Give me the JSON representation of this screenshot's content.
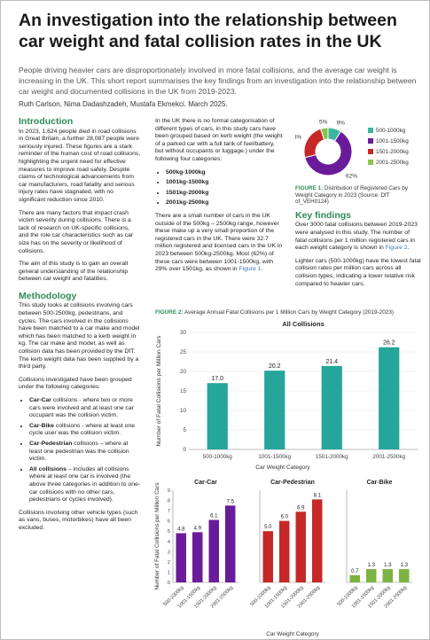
{
  "title": "An investigation into the relationship between car weight and fatal collision rates in the UK",
  "intro": "People driving heavier cars are disproportionately involved in more fatal collisions, and the average car weight is increasing in the UK. This short report summarises the key findings from an investigation into the relationship between car weight and documented collisions in the UK from 2019-2023.",
  "authors": "Ruth Carlson, Nima Dadashzadeh, Mustafa Ekmekci. March 2025.",
  "introduction": {
    "heading": "Introduction",
    "p1": "In 2023, 1,624 people died in road collisions in Great Britain, a further 28,087 people were seriously injured. These figures are a stark reminder of the human cost of road collisions, highlighting the urgent need for effective measures to improve road safety. Despite claims of technological advancements from car manufacturers, road fatality and serious injury rates have stagnated, with no significant reduction since 2010.",
    "p2": "There are many factors that impact crash victim severity during collisions. There is a lack of research on UK-specific collisions, and the role car characteristics such as car size has on the severity or likelihood of collisions.",
    "p3": "The aim of this study is to gain an overall general understanding of the relationship between car weight and fatalities."
  },
  "methodology": {
    "heading": "Methodology",
    "p1": "This study looks at collisions involving cars between 500-2500kg, pedestrians, and cycles. The cars involved in the collisions have been matched to a car make and model which has been matched to a kerb weight in kg. The car make and model, as well as collision data has been provided by the DfT. The kerb weight data has been supplied by a third party.",
    "p2": "Collisions investigated have been grouped under the following categories:",
    "items": [
      {
        "term": "Car-Car",
        "text": " collisions - where two or more cars were involved and at least one car occupant was the collision victim."
      },
      {
        "term": "Car-Bike",
        "text": " collisions - where at least one cycle user was the collision victim."
      },
      {
        "term": "Car-Pedestrian",
        "text": " collisions – where at least one pedestrian was the collision victim."
      },
      {
        "term": "All collisions",
        "text": " – includes all collisions where at least one car is involved (the above three categories in addition to one-car collisions with no other cars, pedestrians or cycles involved)."
      }
    ],
    "p3": "Collisions involving other vehicle types (such as vans, buses, motorbikes) have all been excluded."
  },
  "categories_text": {
    "p1": "In the UK there is no formal categorisation of different types of cars, in this study cars have been grouped based on kerb weight (the weight of a parked car with a full tank of fuel/battery, but without occupants or luggage.) under the following four categories:",
    "items": [
      "500kg-1000kg",
      "1001kg-1500kg",
      "1501kg-2000kg",
      "2001kg-2500kg"
    ],
    "p2_before": "There are a small number of cars in the UK outside of the 500kg – 2500kg range, however these make up a very small proportion of the registered cars in the UK. There were 32.7 million registered and licensed cars in the UK in 2023 between 500kg-2500kg. Most (62%) of these cars were between 1001-1500kg, with 29% over 1501kg, as shown in ",
    "p2_link": "Figure 1",
    "p2_after": "."
  },
  "figure1": {
    "label": "FIGURE 1:",
    "caption": " Distribution of Registered Cars by Weight Category in 2023 (Source: DfT of_VEH0124)"
  },
  "key_findings": {
    "heading": "Key findings",
    "p1_before": "Over 3000 fatal collisions between 2019-2023 were analysed in this study. The number of fatal collisions per 1 million registered cars in each weight category is shown in ",
    "p1_link": "Figure 2",
    "p1_after": ".",
    "p2": "Lighter cars (500-1000kg) have the lowest fatal collision rates per million cars across all collision types, indicating a lower relative risk compared to heavier cars."
  },
  "figure2": {
    "label": "FIGURE 2:",
    "caption": " Average Annual Fatal Collisions per 1 Million Cars by Weight Category (2019-2023)"
  },
  "chart_data": [
    {
      "type": "pie",
      "categories": [
        "500-1000kg",
        "1001-1500kg",
        "1501-2000kg",
        "2001-2500kg"
      ],
      "values": [
        9,
        62,
        24,
        5
      ],
      "value_labels": [
        "9%",
        "62%",
        "24%",
        "5%"
      ],
      "colors": [
        "#3cb5a0",
        "#6a1b9a",
        "#c62828",
        "#8bc34a"
      ],
      "legend": "right"
    },
    {
      "type": "bar",
      "title": "All Collisions",
      "categories": [
        "500-1000kg",
        "1001-1500kg",
        "1501-2000kg",
        "2001-2500kg"
      ],
      "values": [
        17.0,
        20.2,
        21.4,
        26.2
      ],
      "value_labels": [
        "17.0",
        "20.2",
        "21.4",
        "26.2"
      ],
      "ylabel": "Number of Fatal Collisions per Million Cars",
      "xlabel": "Car Weight Category",
      "yticks": [
        "0",
        "5",
        "10",
        "15",
        "20",
        "25",
        "30"
      ],
      "ylim": [
        0,
        30
      ],
      "color": "#26a69a"
    },
    {
      "type": "bar",
      "title": "Car-Car",
      "categories": [
        "500-1000kg",
        "1001-1500kg",
        "1501-2000kg",
        "2001-2500kg"
      ],
      "values": [
        4.8,
        4.9,
        6.1,
        7.5
      ],
      "value_labels": [
        "4.8",
        "4.9",
        "6.1",
        "7.5"
      ],
      "ylabel": "Number of Fatal Collisions per Million Cars",
      "yticks": [
        "0",
        "1",
        "2",
        "3",
        "4",
        "5",
        "6",
        "7",
        "8",
        "9"
      ],
      "ylim": [
        0,
        9
      ],
      "color": "#6a1b9a"
    },
    {
      "type": "bar",
      "title": "Car-Pedestrian",
      "categories": [
        "500-1000kg",
        "1001-1500kg",
        "1501-2000kg",
        "2001-2500kg"
      ],
      "values": [
        5.0,
        6.0,
        6.9,
        8.1
      ],
      "value_labels": [
        "5.0",
        "6.0",
        "6.9",
        "8.1"
      ],
      "xlabel": "Car Weight Category",
      "ylim": [
        0,
        9
      ],
      "color": "#c62828"
    },
    {
      "type": "bar",
      "title": "Car-Bike",
      "categories": [
        "500-1000kg",
        "1001-1500kg",
        "1501-2000kg",
        "2001-2500kg"
      ],
      "values": [
        0.7,
        1.3,
        1.3,
        1.3
      ],
      "value_labels": [
        "0.7",
        "1.3",
        "1.3",
        "1.3"
      ],
      "ylim": [
        0,
        9
      ],
      "color": "#7cb342"
    }
  ]
}
